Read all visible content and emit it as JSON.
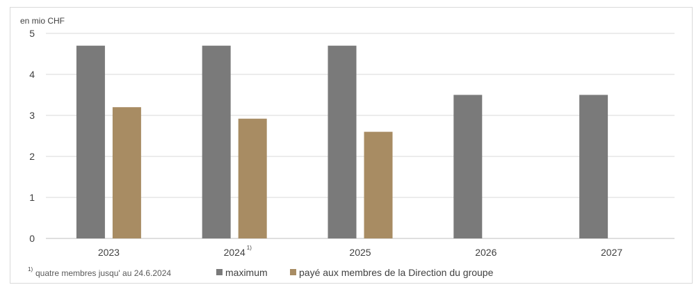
{
  "chart_data": {
    "type": "bar",
    "unit_label": "en mio CHF",
    "categories": [
      "2023",
      "2024",
      "2025",
      "2026",
      "2027"
    ],
    "category_superscripts": [
      "",
      "1)",
      "",
      "",
      ""
    ],
    "series": [
      {
        "name": "maximum",
        "values": [
          4.7,
          4.7,
          4.7,
          3.5,
          3.5
        ]
      },
      {
        "name": "payé aux membres de la Direction du groupe",
        "values": [
          3.2,
          2.92,
          2.6,
          null,
          null
        ]
      }
    ],
    "ylim": [
      0,
      5
    ],
    "yticks": [
      0,
      1,
      2,
      3,
      4,
      5
    ],
    "grid": true,
    "legend_position": "bottom-left",
    "footnote_marker": "1)",
    "footnote_text": "quatre membres jusqu' au 24.6.2024"
  },
  "colors": {
    "maximum": "#7a7a7a",
    "paid": "#a88c63",
    "grid": "#d9d9d9",
    "axis": "#bfbfbf"
  }
}
